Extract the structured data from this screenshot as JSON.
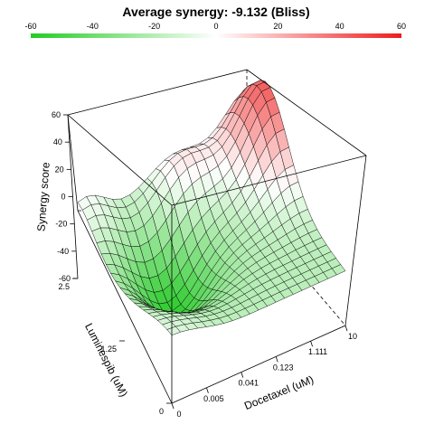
{
  "colors": {
    "negative": "#33cc33",
    "neutral": "#ffffff",
    "positive": "#ee2222",
    "mesh_line": "#000000"
  },
  "chart_data": {
    "type": "surface3d",
    "title": "Average synergy: -9.132 (Bliss)",
    "colorbar": {
      "min": -60,
      "max": 60,
      "tick_labels": [
        "-60",
        "-40",
        "-20",
        "0",
        "20",
        "40",
        "60"
      ]
    },
    "z_axis": {
      "label": "Synergy score",
      "range": [
        -60,
        60
      ],
      "tick_labels": [
        "60",
        "40",
        "20",
        "0",
        "-20",
        "-40",
        "-60"
      ]
    },
    "x_axis": {
      "label": "Docetaxel (uM)",
      "tick_labels": [
        "0",
        "0.005",
        "0.041",
        "0.123",
        "1.111",
        "10"
      ]
    },
    "y_axis": {
      "label": "Luminespib (uM)",
      "tick_labels": [
        "0",
        "1.25",
        "2.5"
      ]
    },
    "surface_features": [
      {
        "near_docetaxel": "0.041",
        "near_luminespib": "1.25",
        "synergy": -55
      },
      {
        "near_docetaxel": "1.111",
        "near_luminespib": "2.5",
        "synergy": 55
      },
      {
        "near_docetaxel": "0",
        "near_luminespib": "2.5",
        "synergy": 0
      }
    ],
    "grid": false
  }
}
